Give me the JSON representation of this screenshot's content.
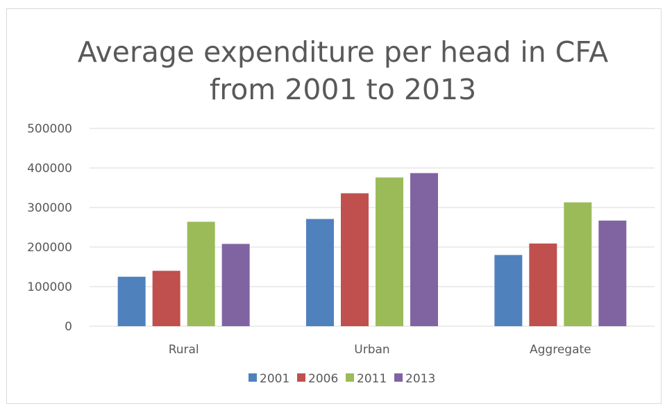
{
  "chart_data": {
    "type": "bar",
    "title_lines": [
      "Average expenditure per head in CFA",
      "from 2001 to 2013"
    ],
    "xlabel": "",
    "ylabel": "",
    "categories": [
      "Rural",
      "Urban",
      "Aggregate"
    ],
    "series": [
      {
        "name": "2001",
        "color": "#4f81bd",
        "values": [
          125000,
          271000,
          180000
        ]
      },
      {
        "name": "2006",
        "color": "#c0504d",
        "values": [
          140000,
          336000,
          209000
        ]
      },
      {
        "name": "2011",
        "color": "#9bbb59",
        "values": [
          264000,
          376000,
          313000
        ]
      },
      {
        "name": "2013",
        "color": "#8064a2",
        "values": [
          208000,
          387000,
          267000
        ]
      }
    ],
    "ylim": [
      0,
      500000
    ],
    "yticks": [
      "0",
      "100000",
      "200000",
      "300000",
      "400000",
      "500000"
    ],
    "grid": true,
    "legend_position": "bottom"
  }
}
